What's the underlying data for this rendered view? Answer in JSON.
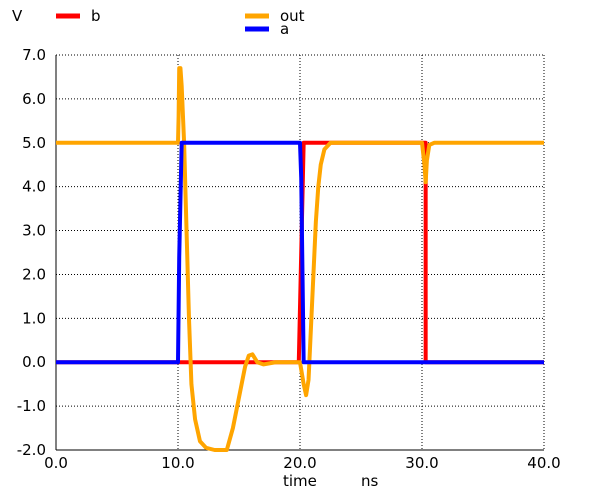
{
  "chart_data": {
    "type": "line",
    "ylabel": "V",
    "xlabel": "time",
    "xunit": "ns",
    "xlim": [
      0,
      40
    ],
    "ylim": [
      -2,
      7
    ],
    "x_ticks": [
      {
        "value": 0,
        "label": "0.0"
      },
      {
        "value": 10,
        "label": "10.0"
      },
      {
        "value": 20,
        "label": "20.0"
      },
      {
        "value": 30,
        "label": "30.0"
      },
      {
        "value": 40,
        "label": "40.0"
      }
    ],
    "y_ticks": [
      {
        "value": -2,
        "label": "-2.0"
      },
      {
        "value": -1,
        "label": "-1.0"
      },
      {
        "value": 0,
        "label": "0.0"
      },
      {
        "value": 1,
        "label": "1.0"
      },
      {
        "value": 2,
        "label": "2.0"
      },
      {
        "value": 3,
        "label": "3.0"
      },
      {
        "value": 4,
        "label": "4.0"
      },
      {
        "value": 5,
        "label": "5.0"
      },
      {
        "value": 6,
        "label": "6.0"
      },
      {
        "value": 7,
        "label": "7.0"
      }
    ],
    "grid": true,
    "legend_position": "top",
    "series": [
      {
        "name": "b",
        "color": "#ff0000",
        "points": [
          [
            0,
            0
          ],
          [
            10.0,
            0
          ],
          [
            10.2,
            0
          ],
          [
            19.9,
            0
          ],
          [
            20.3,
            5.0
          ],
          [
            30.0,
            5.0
          ],
          [
            30.3,
            5.0
          ],
          [
            30.3,
            0
          ],
          [
            40,
            0
          ]
        ]
      },
      {
        "name": "out",
        "color": "#ffa500",
        "points": [
          [
            0,
            5.0
          ],
          [
            10.0,
            5.0
          ],
          [
            10.05,
            5.6
          ],
          [
            10.1,
            6.7
          ],
          [
            10.2,
            6.7
          ],
          [
            10.3,
            6.3
          ],
          [
            10.5,
            5.0
          ],
          [
            10.7,
            3.0
          ],
          [
            10.9,
            1.0
          ],
          [
            11.1,
            -0.5
          ],
          [
            11.4,
            -1.3
          ],
          [
            11.8,
            -1.8
          ],
          [
            12.3,
            -1.95
          ],
          [
            13.0,
            -2.0
          ],
          [
            14.0,
            -2.0
          ],
          [
            14.5,
            -1.5
          ],
          [
            15.0,
            -0.8
          ],
          [
            15.5,
            -0.1
          ],
          [
            15.8,
            0.15
          ],
          [
            16.1,
            0.18
          ],
          [
            16.5,
            0.0
          ],
          [
            17.0,
            -0.05
          ],
          [
            18.0,
            0.0
          ],
          [
            19.0,
            0.0
          ],
          [
            20.0,
            0.0
          ],
          [
            20.3,
            -0.5
          ],
          [
            20.5,
            -0.75
          ],
          [
            20.7,
            -0.4
          ],
          [
            20.9,
            0.8
          ],
          [
            21.1,
            2.0
          ],
          [
            21.3,
            3.2
          ],
          [
            21.5,
            4.0
          ],
          [
            21.7,
            4.5
          ],
          [
            22.0,
            4.85
          ],
          [
            22.5,
            5.0
          ],
          [
            30.0,
            5.0
          ],
          [
            30.2,
            4.5
          ],
          [
            30.3,
            4.1
          ],
          [
            30.4,
            4.6
          ],
          [
            30.6,
            4.95
          ],
          [
            31.0,
            5.0
          ],
          [
            40.0,
            5.0
          ]
        ]
      },
      {
        "name": "a",
        "color": "#0000ff",
        "points": [
          [
            0,
            0
          ],
          [
            10.0,
            0
          ],
          [
            10.1,
            2.4
          ],
          [
            10.3,
            5.0
          ],
          [
            20.0,
            5.0
          ],
          [
            20.1,
            4.2
          ],
          [
            20.3,
            0
          ],
          [
            40,
            0
          ]
        ]
      }
    ]
  }
}
